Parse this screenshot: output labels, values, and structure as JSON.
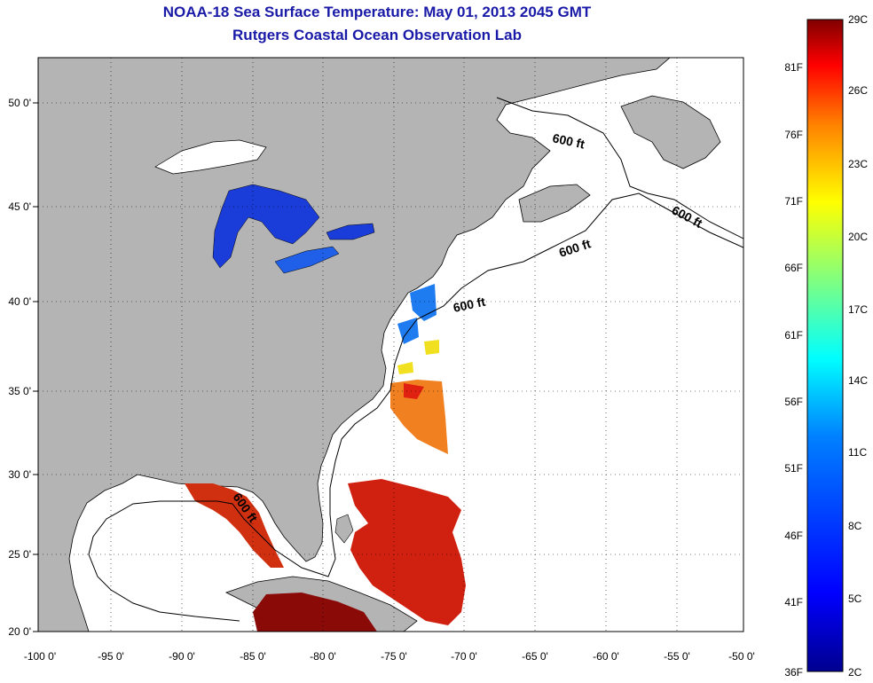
{
  "title": {
    "line1": "NOAA-18 Sea Surface Temperature:  May 01, 2013 2045 GMT",
    "line2": "Rutgers Coastal Ocean Observation Lab"
  },
  "map": {
    "lon_ticks": [
      "-100 0'",
      "-95 0'",
      "-90 0'",
      "-85 0'",
      "-80 0'",
      "-75 0'",
      "-70 0'",
      "-65 0'",
      "-60 0'",
      "-55 0'",
      "-50 0'"
    ],
    "lat_ticks": [
      "50 0'",
      "45 0'",
      "40 0'",
      "35 0'",
      "30 0'",
      "25 0'",
      "20 0'"
    ],
    "contour_label": "600 ft",
    "land_color": "#b4b4b4",
    "water_color": "#ffffff"
  },
  "colorbar": {
    "fahrenheit": [
      "81F",
      "76F",
      "71F",
      "66F",
      "61F",
      "56F",
      "51F",
      "46F",
      "41F",
      "36F"
    ],
    "celsius": [
      "29C",
      "26C",
      "23C",
      "20C",
      "17C",
      "14C",
      "11C",
      "8C",
      "5C",
      "2C"
    ],
    "colors": [
      "#800000",
      "#ff0000",
      "#ff8000",
      "#ffff00",
      "#80ff80",
      "#00ffff",
      "#0080ff",
      "#0000ff",
      "#00008f"
    ]
  }
}
